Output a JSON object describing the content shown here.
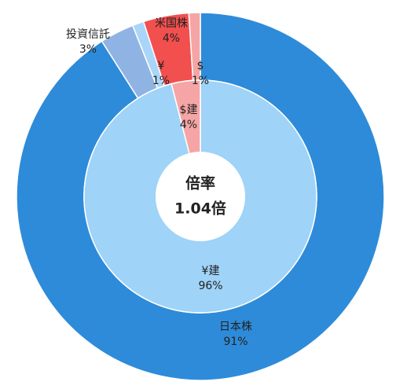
{
  "chart_data": {
    "type": "nested-donut",
    "rings": [
      {
        "categories": [
          "日本株",
          "投資信託",
          "¥",
          "米国株",
          "$"
        ],
        "values": [
          91,
          3,
          1,
          4,
          1
        ],
        "value_labels": [
          "91%",
          "3%",
          "1%",
          "4%",
          "1%"
        ],
        "colors": [
          "#2e8bd9",
          "#8fb3e3",
          "#a9d6f8",
          "#f24f4f",
          "#f5a5a5"
        ]
      },
      {
        "categories": [
          "¥建",
          "$建"
        ],
        "values": [
          96,
          4
        ],
        "value_labels": [
          "96%",
          "4%"
        ],
        "colors": [
          "#9fd3f8",
          "#f5a5a5"
        ]
      }
    ],
    "center_text": [
      "倍率",
      "1.04倍"
    ]
  }
}
